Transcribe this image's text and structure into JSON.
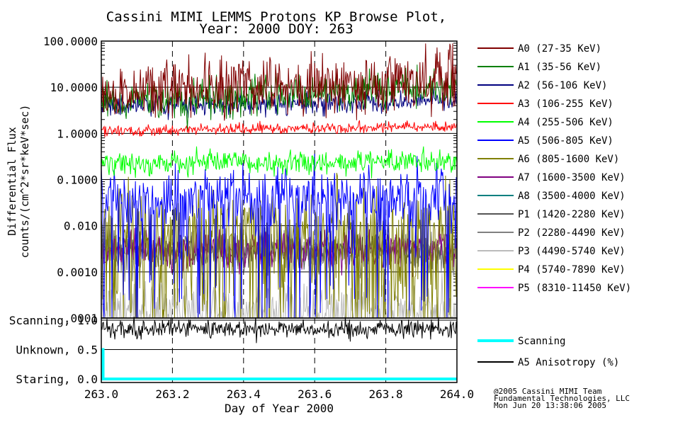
{
  "chart_data": {
    "type": "line",
    "title": "Cassini MIMI LEMMS Protons KP Browse Plot,",
    "subtitle": "Year: 2000 DOY: 263",
    "xlabel": "Day of Year 2000",
    "ylabel_line1": "Differential Flux",
    "ylabel_line2": "counts/(cm^2*sr*keV*sec)",
    "xlim": [
      263.0,
      264.0
    ],
    "x_ticks": [
      263.0,
      263.2,
      263.4,
      263.6,
      263.8,
      264.0
    ],
    "x_tick_labels": [
      "263.0",
      "263.2",
      "263.4",
      "263.6",
      "263.8",
      "264.0"
    ],
    "ylim": [
      0.0001,
      100
    ],
    "yscale": "log",
    "y_ticks": [
      100,
      10,
      1,
      0.1,
      0.01,
      0.001,
      0.0001
    ],
    "y_tick_labels": [
      "100.0000",
      "10.0000",
      "1.0000",
      "0.1000",
      "0.010",
      "0.0010",
      ".0001"
    ],
    "series": [
      {
        "name": "A0 (27-35 KeV)",
        "color": "#800000",
        "start": 8,
        "end": 14,
        "noise": 0.32
      },
      {
        "name": "A1 (35-56 KeV)",
        "color": "#008000",
        "start": 5,
        "end": 10,
        "noise": 0.22
      },
      {
        "name": "A2 (56-106 KeV)",
        "color": "#000080",
        "start": 3.8,
        "end": 5,
        "noise": 0.12
      },
      {
        "name": "A3 (106-255 KeV)",
        "color": "#ff0000",
        "start": 1.15,
        "end": 1.4,
        "noise": 0.06
      },
      {
        "name": "A4 (255-506 KeV)",
        "color": "#00ff00",
        "start": 0.22,
        "end": 0.25,
        "noise": 0.12
      },
      {
        "name": "A5 (506-805 KeV)",
        "color": "#0000ff",
        "start": 0.04,
        "end": 0.04,
        "noise": 1.0
      },
      {
        "name": "A6 (805-1600 KeV)",
        "color": "#808000",
        "start": 0.01,
        "end": 0.01,
        "noise": 1.2
      },
      {
        "name": "A7 (1600-3500 KeV)",
        "color": "#800080",
        "start": 0.003,
        "end": 0.003,
        "noise": 0.2
      },
      {
        "name": "A8 (3500-4000 KeV)",
        "color": "#008080",
        "start": 0.003,
        "end": 0.003,
        "noise": 0.15
      },
      {
        "name": "P1 (1420-2280 KeV)",
        "color": "#555555",
        "start": 0.003,
        "end": 0.003,
        "noise": 0.2
      },
      {
        "name": "P2 (2280-4490 KeV)",
        "color": "#808080",
        "start": 0.003,
        "end": 0.003,
        "noise": 0.25
      },
      {
        "name": "P3 (4490-5740 KeV)",
        "color": "#bbbbbb",
        "start": 0.0002,
        "end": 0.0002,
        "noise": 0.5
      },
      {
        "name": "P4 (5740-7890 KeV)",
        "color": "#ffff00",
        "start": 0.0001,
        "end": 0.0001,
        "noise": 0.05
      },
      {
        "name": "P5 (8310-11450 KeV)",
        "color": "#ff00ff",
        "start": 0.0001,
        "end": 0.0001,
        "noise": 0.05
      }
    ],
    "lower_panel": {
      "y_tick_labels": [
        "Scanning, 1.0",
        "Unknown, 0.5",
        "Staring, 0.0"
      ],
      "y_ticks": [
        1.0,
        0.5,
        0.0
      ],
      "series": [
        {
          "name": "Scanning",
          "color": "#00ffff"
        },
        {
          "name": "A5 Anisotropy (%)",
          "color": "#000000"
        }
      ],
      "scanning_drop_at": 263.005,
      "scanning_start_value": 0.5,
      "scanning_value": 0.0,
      "anisotropy_level": 0.85,
      "anisotropy_noise": 0.08
    },
    "credit": [
      "@2005 Cassini MIMI Team",
      "Fundamental Technologies, LLC",
      "Mon Jun 20 13:38:06 2005"
    ]
  }
}
